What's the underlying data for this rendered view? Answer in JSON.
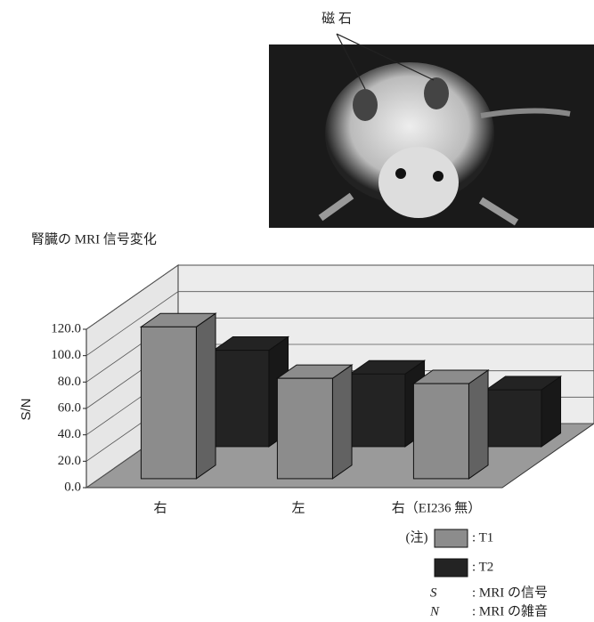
{
  "chart_data": {
    "type": "bar3d",
    "annotation": "磁 石",
    "title": "腎臓の MRI 信号変化",
    "y_label": "S/N",
    "categories": [
      "右",
      "左",
      "右（EI236 無）"
    ],
    "series": [
      {
        "name": ": T1",
        "color": "#8c8c8c",
        "values": [
          115,
          76,
          72
        ]
      },
      {
        "name": ": T2",
        "color": "#232323",
        "values": [
          73,
          55,
          43
        ]
      }
    ],
    "ylim": [
      0,
      120
    ],
    "yticks": [
      {
        "value": 0,
        "label": "0.0"
      },
      {
        "value": 20,
        "label": "20.0"
      },
      {
        "value": 40,
        "label": "40.0"
      },
      {
        "value": 60,
        "label": "60.0"
      },
      {
        "value": 80,
        "label": "80.0"
      },
      {
        "value": 100,
        "label": "100.0"
      },
      {
        "value": 120,
        "label": "120.0"
      }
    ],
    "grid": true,
    "legend_note": "(注)",
    "notes": [
      {
        "symbol": "S",
        "text": ": MRI の信号"
      },
      {
        "symbol": "N",
        "text": ": MRI の雑音"
      }
    ]
  }
}
